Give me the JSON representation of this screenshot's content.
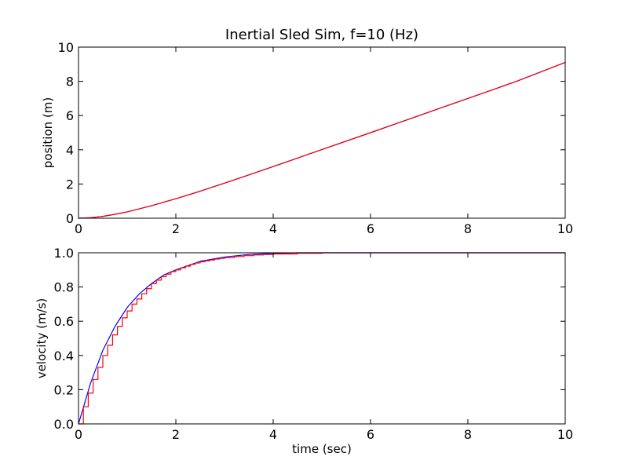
{
  "chart_data": [
    {
      "type": "line",
      "title": "Inertial Sled Sim, f=10 (Hz)",
      "xlabel": "",
      "ylabel": "position (m)",
      "xlim": [
        0,
        10
      ],
      "ylim": [
        0,
        10
      ],
      "x_ticks": [
        0,
        2,
        4,
        6,
        8,
        10
      ],
      "y_ticks": [
        0,
        2,
        4,
        6,
        8,
        10
      ],
      "x_tick_labels": [
        "0",
        "2",
        "4",
        "6",
        "8",
        "10"
      ],
      "y_tick_labels": [
        "0",
        "2",
        "4",
        "6",
        "8",
        "10"
      ],
      "grid": false,
      "series": [
        {
          "color": "#0000ff",
          "style": "continuous",
          "x": [
            0,
            0.25,
            0.5,
            0.75,
            1,
            1.5,
            2,
            2.5,
            3,
            3.5,
            4,
            5,
            6,
            7,
            8,
            9,
            10
          ],
          "y": [
            0,
            0.03,
            0.11,
            0.23,
            0.37,
            0.73,
            1.14,
            1.58,
            2.05,
            2.53,
            3.02,
            4.01,
            5.0,
            6.0,
            7.0,
            8.0,
            9.1
          ]
        },
        {
          "color": "#ff0000",
          "style": "continuous",
          "x": [
            0,
            0.25,
            0.5,
            0.75,
            1,
            1.5,
            2,
            2.5,
            3,
            3.5,
            4,
            5,
            6,
            7,
            8,
            9,
            10
          ],
          "y": [
            0,
            0.03,
            0.11,
            0.23,
            0.37,
            0.73,
            1.14,
            1.58,
            2.05,
            2.53,
            3.02,
            4.01,
            5.0,
            6.0,
            7.0,
            8.0,
            9.1
          ]
        }
      ]
    },
    {
      "type": "line",
      "title": "",
      "xlabel": "time (sec)",
      "ylabel": "velocity (m/s)",
      "xlim": [
        0,
        10
      ],
      "ylim": [
        0,
        1.0
      ],
      "x_ticks": [
        0,
        2,
        4,
        6,
        8,
        10
      ],
      "y_ticks": [
        0,
        0.2,
        0.4,
        0.6,
        0.8,
        1.0
      ],
      "x_tick_labels": [
        "0",
        "2",
        "4",
        "6",
        "8",
        "10"
      ],
      "y_tick_labels": [
        "0.0",
        "0.2",
        "0.4",
        "0.6",
        "0.8",
        "1.0"
      ],
      "grid": false,
      "series": [
        {
          "color": "#0000ff",
          "style": "continuous",
          "x": [
            0,
            0.25,
            0.5,
            0.75,
            1,
            1.25,
            1.5,
            1.75,
            2,
            2.5,
            3,
            3.5,
            4,
            4.5,
            5,
            6,
            7,
            8,
            9,
            10
          ],
          "y": [
            0,
            0.24,
            0.43,
            0.57,
            0.68,
            0.76,
            0.82,
            0.87,
            0.9,
            0.95,
            0.975,
            0.99,
            0.997,
            1.0,
            1.0,
            1.0,
            1.0,
            1.0,
            1.0,
            1.0
          ]
        },
        {
          "color": "#ff0000",
          "style": "zero-order hold, sample period 0.1 s",
          "x": [
            0,
            0.1,
            0.2,
            0.3,
            0.4,
            0.5,
            0.6,
            0.7,
            0.8,
            0.9,
            1.0,
            1.1,
            1.2,
            1.3,
            1.4,
            1.5,
            1.6,
            1.7,
            1.8,
            1.9,
            2.0,
            2.1,
            2.2,
            2.3,
            2.4,
            2.5,
            2.6,
            2.7,
            2.8,
            2.9,
            3.0,
            3.2,
            3.4,
            3.6,
            3.8,
            4.0,
            4.5,
            5,
            10
          ],
          "y": [
            0,
            0.1,
            0.18,
            0.26,
            0.33,
            0.4,
            0.46,
            0.52,
            0.57,
            0.62,
            0.66,
            0.7,
            0.73,
            0.76,
            0.79,
            0.82,
            0.84,
            0.86,
            0.875,
            0.89,
            0.9,
            0.912,
            0.922,
            0.932,
            0.94,
            0.947,
            0.953,
            0.958,
            0.963,
            0.967,
            0.971,
            0.978,
            0.983,
            0.987,
            0.99,
            0.993,
            0.997,
            1.0,
            1.0
          ]
        }
      ]
    }
  ]
}
